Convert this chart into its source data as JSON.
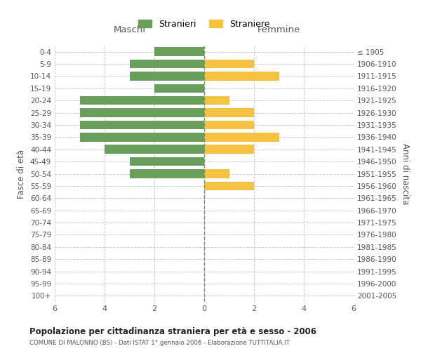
{
  "age_groups": [
    "0-4",
    "5-9",
    "10-14",
    "15-19",
    "20-24",
    "25-29",
    "30-34",
    "35-39",
    "40-44",
    "45-49",
    "50-54",
    "55-59",
    "60-64",
    "65-69",
    "70-74",
    "75-79",
    "80-84",
    "85-89",
    "90-94",
    "95-99",
    "100+"
  ],
  "birth_years": [
    "2001-2005",
    "1996-2000",
    "1991-1995",
    "1986-1990",
    "1981-1985",
    "1976-1980",
    "1971-1975",
    "1966-1970",
    "1961-1965",
    "1956-1960",
    "1951-1955",
    "1946-1950",
    "1941-1945",
    "1936-1940",
    "1931-1935",
    "1926-1930",
    "1921-1925",
    "1916-1920",
    "1911-1915",
    "1906-1910",
    "≤ 1905"
  ],
  "males": [
    2,
    3,
    3,
    2,
    5,
    5,
    5,
    5,
    4,
    3,
    3,
    0,
    0,
    0,
    0,
    0,
    0,
    0,
    0,
    0,
    0
  ],
  "females": [
    0,
    2,
    3,
    0,
    1,
    2,
    2,
    3,
    2,
    0,
    1,
    2,
    0,
    0,
    0,
    0,
    0,
    0,
    0,
    0,
    0
  ],
  "male_color": "#6a9e5b",
  "female_color": "#f5c242",
  "title": "Popolazione per cittadinanza straniera per età e sesso - 2006",
  "subtitle": "COMUNE DI MALONNO (BS) - Dati ISTAT 1° gennaio 2006 - Elaborazione TUTTITALIA.IT",
  "ylabel_left": "Fasce di età",
  "ylabel_right": "Anni di nascita",
  "xlabel_left": "Maschi",
  "xlabel_right": "Femmine",
  "legend_male": "Stranieri",
  "legend_female": "Straniere",
  "xlim": 6,
  "background_color": "#ffffff",
  "grid_color": "#cccccc"
}
